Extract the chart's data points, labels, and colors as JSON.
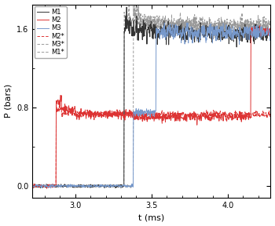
{
  "xlabel": "t (ms)",
  "ylabel": "P (bars)",
  "xlim": [
    2.72,
    4.28
  ],
  "ylim": [
    -0.12,
    1.85
  ],
  "yticks": [
    0.0,
    0.8,
    1.6
  ],
  "xticks": [
    3.0,
    3.5,
    4.0
  ],
  "legend_labels": [
    "M1",
    "M2",
    "M3",
    "M2*",
    "M3*",
    "M1*"
  ],
  "color_M1": "#333333",
  "color_M2": "#dd3333",
  "color_M3": "#7799cc",
  "color_M2star": "#dd3333",
  "color_M3star": "#999999",
  "color_M1star": "#999999",
  "bg_color": "#ffffff",
  "seed": 7
}
